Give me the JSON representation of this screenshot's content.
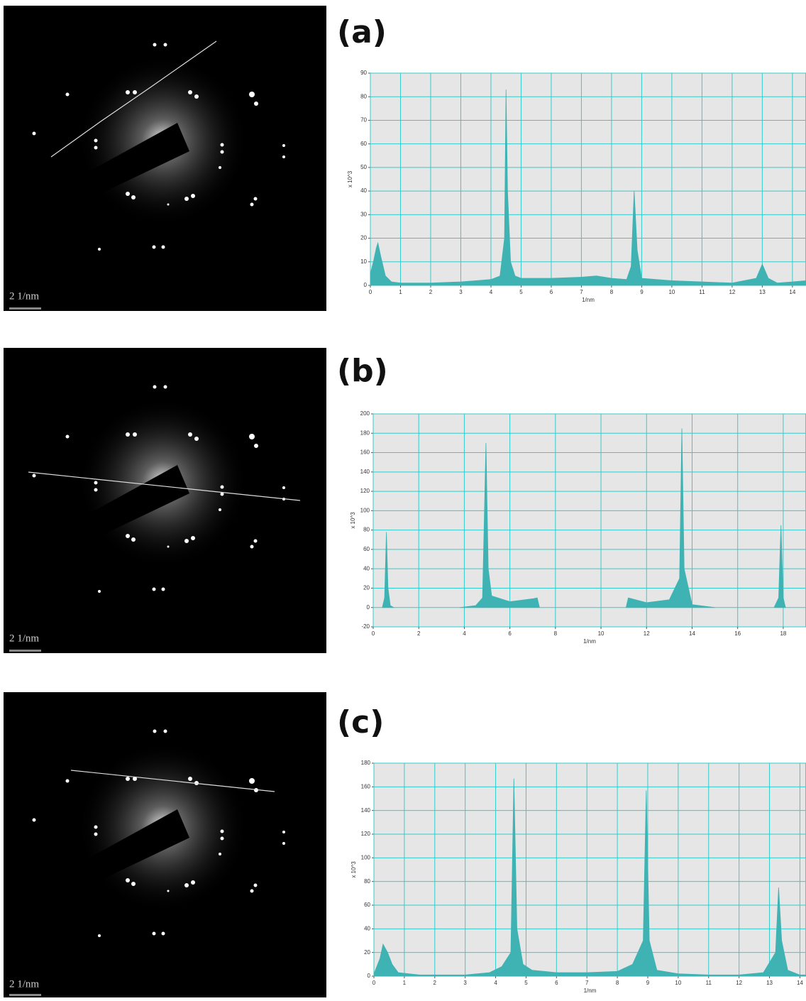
{
  "images": [
    {
      "scale_label": "2 1/nm"
    },
    {
      "scale_label": "2 1/nm"
    },
    {
      "scale_label": "2 1/nm"
    }
  ],
  "chart_data": [
    {
      "type": "area",
      "title": "(a)",
      "x_label": "1/nm",
      "y_label": "x 10^3",
      "color": "#3fb3b3",
      "grid": true,
      "xlim": [
        0,
        14.45
      ],
      "xticks": [
        0,
        1,
        2,
        3,
        4,
        5,
        6,
        7,
        8,
        9,
        10,
        11,
        12,
        13,
        14
      ],
      "ylim": [
        0,
        90
      ],
      "yticks": [
        0,
        10,
        20,
        30,
        40,
        50,
        60,
        70,
        80,
        90
      ],
      "x": [
        0,
        0.1,
        0.2,
        0.25,
        0.35,
        0.5,
        0.7,
        1,
        2,
        3,
        3.5,
        4,
        4.3,
        4.45,
        4.5,
        4.55,
        4.65,
        4.8,
        5,
        6,
        7,
        7.5,
        8,
        8.5,
        8.65,
        8.75,
        8.85,
        9,
        10,
        11,
        12,
        12.8,
        13,
        13.2,
        13.5,
        14,
        14.45
      ],
      "values": [
        5,
        10,
        16,
        18,
        12,
        4,
        1.5,
        1,
        1,
        1.5,
        2,
        2.5,
        4,
        20,
        83,
        40,
        10,
        4,
        3,
        3,
        3.5,
        4,
        3,
        2.5,
        8,
        40,
        15,
        3,
        2,
        1.5,
        1,
        3,
        9,
        3,
        1,
        1.5,
        2
      ]
    },
    {
      "type": "area",
      "title": "(b)",
      "x_label": "1/nm",
      "y_label": "x 10^3",
      "color": "#3fb3b3",
      "grid": true,
      "xlim": [
        0,
        19
      ],
      "xticks": [
        0,
        2,
        4,
        6,
        8,
        10,
        12,
        14,
        16,
        18
      ],
      "ylim": [
        -20,
        200
      ],
      "yticks": [
        -20,
        0,
        20,
        40,
        60,
        80,
        100,
        120,
        140,
        160,
        180,
        200
      ],
      "x": [
        0.4,
        0.5,
        0.58,
        0.65,
        0.75,
        0.9,
        null,
        3.8,
        4.5,
        4.8,
        4.95,
        5.05,
        5.2,
        6,
        7,
        7.2,
        7.3,
        null,
        11.1,
        11.2,
        12,
        13,
        13.45,
        13.55,
        13.65,
        14,
        15,
        null,
        17.6,
        17.8,
        17.9,
        18,
        18.1
      ],
      "values": [
        0,
        10,
        78,
        20,
        2,
        0,
        null,
        0,
        2,
        10,
        170,
        40,
        12,
        6,
        9,
        10,
        0,
        null,
        0,
        10,
        5,
        8,
        30,
        185,
        40,
        3,
        0,
        null,
        0,
        10,
        85,
        10,
        0
      ]
    },
    {
      "type": "area",
      "title": "(c)",
      "x_label": "1/nm",
      "y_label": "x 10^3",
      "color": "#3fb3b3",
      "grid": true,
      "xlim": [
        0,
        14.2
      ],
      "xticks": [
        0,
        1,
        2,
        3,
        4,
        5,
        6,
        7,
        8,
        9,
        10,
        11,
        12,
        13,
        14
      ],
      "ylim": [
        0,
        180
      ],
      "yticks": [
        0,
        20,
        40,
        60,
        80,
        100,
        120,
        140,
        160,
        180
      ],
      "x": [
        0,
        0.2,
        0.3,
        0.45,
        0.6,
        0.8,
        1.5,
        3,
        3.8,
        4.2,
        4.5,
        4.6,
        4.7,
        4.9,
        5.2,
        6,
        7,
        8,
        8.5,
        8.85,
        8.95,
        9.05,
        9.3,
        10,
        11,
        12,
        12.8,
        13.2,
        13.3,
        13.4,
        13.6,
        14,
        14.2
      ],
      "values": [
        2,
        15,
        27,
        20,
        10,
        3,
        1,
        1,
        3,
        8,
        20,
        167,
        40,
        10,
        5,
        3,
        3,
        4,
        10,
        30,
        157,
        30,
        5,
        2,
        1,
        1,
        3,
        20,
        75,
        30,
        5,
        1,
        1
      ]
    }
  ]
}
